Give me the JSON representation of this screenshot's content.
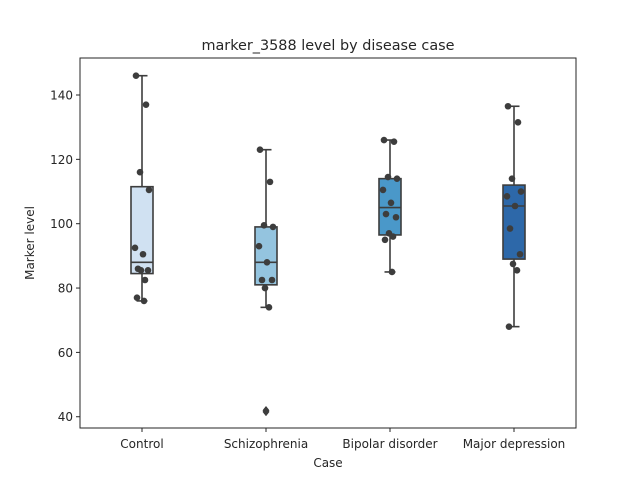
{
  "chart_data": {
    "type": "box",
    "title": "marker_3588 level by disease case",
    "xlabel": "Case",
    "ylabel": "Marker level",
    "ylim": [
      36.5,
      151.5
    ],
    "yticks": [
      40,
      60,
      80,
      100,
      120,
      140
    ],
    "categories": [
      "Control",
      "Schizophrenia",
      "Bipolar disorder",
      "Major depression"
    ],
    "box_colors": [
      "#d0e1f2",
      "#94c4df",
      "#4a98c9",
      "#2d68a9"
    ],
    "boxes": [
      {
        "category": "Control",
        "whisker_low": 76,
        "q1": 84.5,
        "median": 88,
        "q3": 111.5,
        "whisker_high": 146,
        "outliers": []
      },
      {
        "category": "Schizophrenia",
        "whisker_low": 74,
        "q1": 81,
        "median": 88,
        "q3": 99,
        "whisker_high": 123,
        "outliers": [
          42,
          41.5
        ]
      },
      {
        "category": "Bipolar disorder",
        "whisker_low": 85,
        "q1": 96.5,
        "median": 105,
        "q3": 114,
        "whisker_high": 126,
        "outliers": []
      },
      {
        "category": "Major depression",
        "whisker_low": 68,
        "q1": 89,
        "median": 105.5,
        "q3": 112,
        "whisker_high": 136.5,
        "outliers": []
      }
    ],
    "points": [
      {
        "category": "Control",
        "values": [
          146,
          137,
          116,
          110.5,
          92.5,
          90.5,
          86,
          85.5,
          85.5,
          82.5,
          77,
          76
        ]
      },
      {
        "category": "Schizophrenia",
        "values": [
          123,
          113,
          99.5,
          99,
          93,
          88,
          82.5,
          82.5,
          80,
          74
        ]
      },
      {
        "category": "Bipolar disorder",
        "values": [
          126,
          125.5,
          114.5,
          114,
          110.5,
          106.5,
          103,
          102,
          97,
          96,
          95,
          85
        ]
      },
      {
        "category": "Major depression",
        "values": [
          136.5,
          131.5,
          114,
          110,
          108.5,
          105.5,
          98.5,
          90.5,
          87.5,
          85.5,
          68
        ]
      }
    ]
  }
}
